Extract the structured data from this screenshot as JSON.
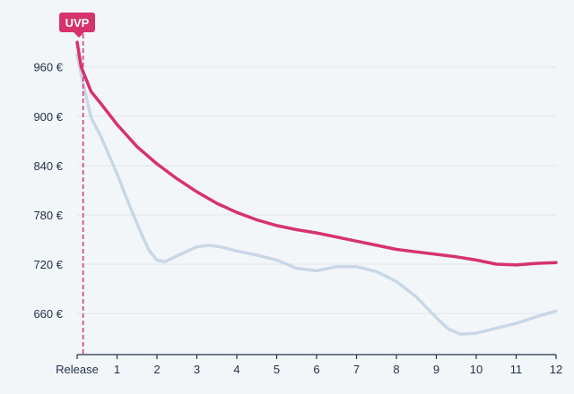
{
  "chart_data": {
    "type": "line",
    "title": "",
    "xlabel": "",
    "ylabel": "",
    "xlim": [
      0,
      12
    ],
    "ylim": [
      610,
      1000
    ],
    "grid": true,
    "y_ticks": [
      660,
      720,
      780,
      840,
      900,
      960
    ],
    "y_tick_labels": [
      "660 €",
      "720 €",
      "780 €",
      "840 €",
      "900 €",
      "960 €"
    ],
    "x_ticks": [
      0,
      1,
      2,
      3,
      4,
      5,
      6,
      7,
      8,
      9,
      10,
      11,
      12
    ],
    "x_tick_labels": [
      "Release",
      "1",
      "2",
      "3",
      "4",
      "5",
      "6",
      "7",
      "8",
      "9",
      "10",
      "11",
      "12"
    ],
    "marker": {
      "label": "UVP",
      "x": 0.15,
      "color": "#d6336c"
    },
    "series": [
      {
        "color": "#d6336c",
        "points": [
          [
            0,
            990
          ],
          [
            0.1,
            960
          ],
          [
            0.35,
            930
          ],
          [
            0.6,
            915
          ],
          [
            1,
            890
          ],
          [
            1.5,
            863
          ],
          [
            2,
            842
          ],
          [
            2.5,
            824
          ],
          [
            3,
            808
          ],
          [
            3.5,
            794
          ],
          [
            4,
            783
          ],
          [
            4.5,
            774
          ],
          [
            5,
            767
          ],
          [
            5.5,
            762
          ],
          [
            6,
            758
          ],
          [
            6.5,
            753
          ],
          [
            7,
            748
          ],
          [
            7.5,
            743
          ],
          [
            8,
            738
          ],
          [
            8.5,
            735
          ],
          [
            9,
            732
          ],
          [
            9.5,
            729
          ],
          [
            10,
            725
          ],
          [
            10.5,
            720
          ],
          [
            11,
            719
          ],
          [
            11.5,
            721
          ],
          [
            12,
            722
          ]
        ]
      },
      {
        "color": "#c9d7e6",
        "points": [
          [
            0,
            975
          ],
          [
            0.15,
            940
          ],
          [
            0.35,
            898
          ],
          [
            0.6,
            875
          ],
          [
            1,
            830
          ],
          [
            1.3,
            793
          ],
          [
            1.6,
            758
          ],
          [
            1.8,
            737
          ],
          [
            2,
            725
          ],
          [
            2.2,
            723
          ],
          [
            2.5,
            730
          ],
          [
            3,
            741
          ],
          [
            3.3,
            743
          ],
          [
            3.6,
            741
          ],
          [
            4,
            736
          ],
          [
            4.5,
            731
          ],
          [
            5,
            725
          ],
          [
            5.5,
            715
          ],
          [
            6,
            712
          ],
          [
            6.5,
            717
          ],
          [
            7,
            717
          ],
          [
            7.5,
            711
          ],
          [
            8,
            699
          ],
          [
            8.5,
            680
          ],
          [
            9,
            655
          ],
          [
            9.3,
            641
          ],
          [
            9.6,
            635
          ],
          [
            10,
            636
          ],
          [
            10.5,
            642
          ],
          [
            11,
            648
          ],
          [
            11.5,
            656
          ],
          [
            12,
            663
          ]
        ]
      }
    ]
  }
}
